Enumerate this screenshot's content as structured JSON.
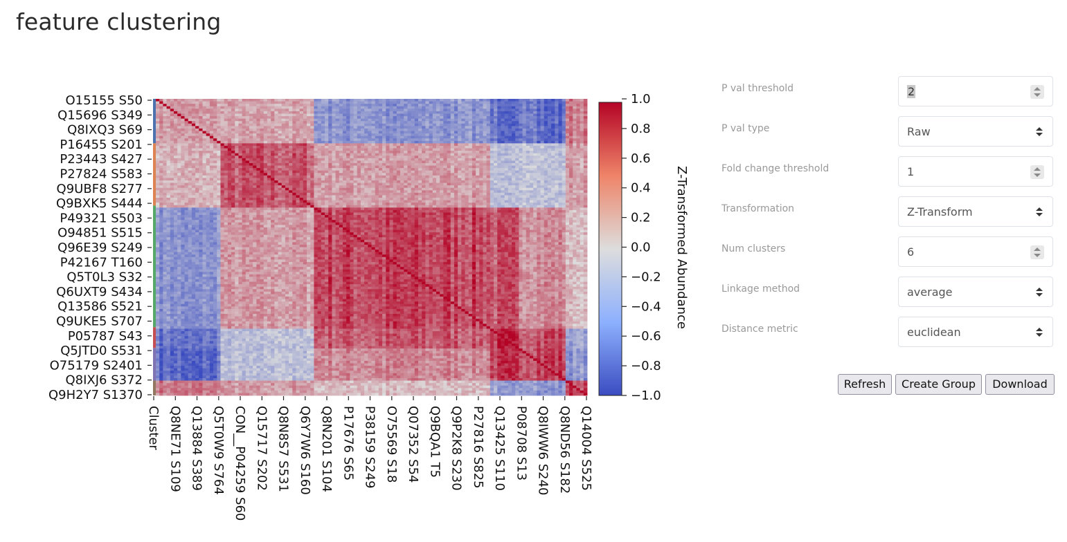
{
  "page": {
    "title": "feature clustering"
  },
  "heatmap": {
    "row_labels": [
      "O15155 S50",
      "Q15696 S349",
      "Q8IXQ3 S69",
      "P16455 S201",
      "P23443 S427",
      "P27824 S583",
      "Q9UBF8 S277",
      "Q9BXK5 S444",
      "P49321 S503",
      "O94851 S515",
      "Q96E39 S249",
      "P42167 T160",
      "Q5T0L3 S32",
      "Q6UXT9 S434",
      "Q13586 S521",
      "Q9UKE5 S707",
      "P05787 S43",
      "Q5JTD0 S531",
      "O75179 S2401",
      "Q8IXJ6 S372",
      "Q9H2Y7 S1370"
    ],
    "col_labels": [
      "Cluster",
      "Q8NE71 S109",
      "Q13884 S389",
      "Q5T0W9 S764",
      "CON__P04259 S60",
      "Q15717 S202",
      "Q8N8S7 S531",
      "Q6Y7W6 S160",
      "Q8N201 S104",
      "P17676 S65",
      "P38159 S249",
      "O75569 S18",
      "Q07352 S54",
      "Q9BQA1 T5",
      "Q9P2K8 S230",
      "P27816 S825",
      "Q13425 S110",
      "P08708 S13",
      "Q8IWW6 S240",
      "Q8ND56 S182",
      "Q14004 S525"
    ],
    "colorbar": {
      "label": "Z-Transformed Abundance",
      "ticks": [
        "1.0",
        "0.8",
        "0.6",
        "0.4",
        "0.2",
        "0.0",
        "−0.2",
        "−0.4",
        "−0.6",
        "−0.8",
        "−1.0"
      ],
      "min_color": "#3b4cc0",
      "mid_color": "#dddddd",
      "max_color": "#b40426"
    },
    "scale": {
      "min": -1.0,
      "max": 1.0
    },
    "block_correlations": [
      [
        0.3,
        0.25,
        -0.5,
        -0.7,
        -0.8,
        0.45
      ],
      [
        0.2,
        0.6,
        0.3,
        -0.2,
        -0.2,
        0.3
      ],
      [
        -0.5,
        0.3,
        0.7,
        0.6,
        0.4,
        0.15
      ],
      [
        -0.7,
        -0.2,
        0.6,
        0.75,
        0.7,
        -0.4
      ],
      [
        -0.8,
        -0.2,
        0.4,
        0.7,
        0.75,
        -0.5
      ],
      [
        0.45,
        0.3,
        0.15,
        -0.4,
        -0.5,
        0.7
      ]
    ]
  },
  "controls": {
    "pval_threshold": {
      "label": "P val threshold",
      "value": "2"
    },
    "pval_type": {
      "label": "P val type",
      "value": "Raw"
    },
    "fold_change": {
      "label": "Fold change threshold",
      "value": "1"
    },
    "transformation": {
      "label": "Transformation",
      "value": "Z-Transform"
    },
    "num_clusters": {
      "label": "Num clusters",
      "value": "6"
    },
    "linkage": {
      "label": "Linkage method",
      "value": "average"
    },
    "distance": {
      "label": "Distance metric",
      "value": "euclidean"
    }
  },
  "buttons": {
    "refresh": "Refresh",
    "create_group": "Create Group",
    "download": "Download"
  }
}
